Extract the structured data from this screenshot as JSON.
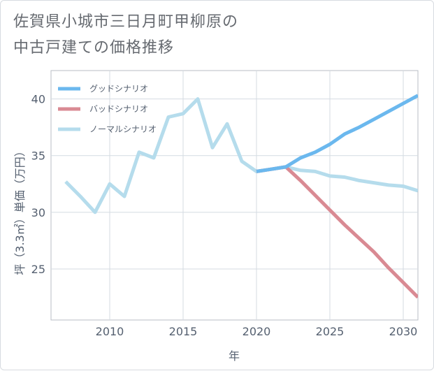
{
  "chart_data": {
    "type": "line",
    "title": "佐賀県小城市三日月町甲柳原の\n中古戸建ての価格推移",
    "xlabel": "年",
    "ylabel": "坪（3.3㎡）単価（万円）",
    "xlim": [
      2006,
      2031
    ],
    "ylim": [
      20.5,
      42.5
    ],
    "xticks": [
      2010,
      2015,
      2020,
      2025,
      2030
    ],
    "yticks": [
      25,
      30,
      35,
      40
    ],
    "grid": true,
    "legend_position": "top-left",
    "series": [
      {
        "name": "グッドシナリオ",
        "color": "#6bb8ee",
        "x": [
          2020,
          2021,
          2022,
          2023,
          2024,
          2025,
          2026,
          2027,
          2028,
          2029,
          2030,
          2031
        ],
        "values": [
          33.6,
          33.8,
          34.0,
          34.8,
          35.3,
          36.0,
          36.9,
          37.5,
          38.2,
          38.9,
          39.6,
          40.3
        ]
      },
      {
        "name": "バッドシナリオ",
        "color": "#d98a93",
        "x": [
          2020,
          2021,
          2022,
          2023,
          2024,
          2025,
          2026,
          2027,
          2028,
          2029,
          2030,
          2031
        ],
        "values": [
          33.6,
          33.8,
          34.0,
          32.8,
          31.5,
          30.2,
          28.9,
          27.7,
          26.5,
          25.1,
          23.8,
          22.5
        ]
      },
      {
        "name": "ノーマルシナリオ",
        "color": "#b5dcec",
        "x": [
          2007,
          2008,
          2009,
          2010,
          2011,
          2012,
          2013,
          2014,
          2015,
          2016,
          2017,
          2018,
          2019,
          2020,
          2021,
          2022,
          2023,
          2024,
          2025,
          2026,
          2027,
          2028,
          2029,
          2030,
          2031
        ],
        "values": [
          32.7,
          31.4,
          30.0,
          32.5,
          31.4,
          35.3,
          34.8,
          38.4,
          38.7,
          40.0,
          35.7,
          37.8,
          34.5,
          33.6,
          33.8,
          34.0,
          33.7,
          33.6,
          33.2,
          33.1,
          32.8,
          32.6,
          32.4,
          32.3,
          31.9
        ]
      }
    ]
  }
}
